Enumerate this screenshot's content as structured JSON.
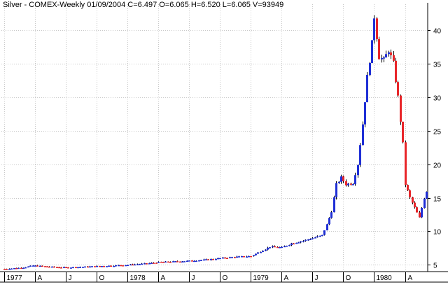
{
  "header": {
    "title": "Silver - COMEX-Weekly   01/09/2004  C=6.497  O=6.065  H=6.520  L=6.065  V=93949"
  },
  "chart_data": {
    "type": "bar",
    "title": "Silver - COMEX-Weekly",
    "grid": true,
    "up_color": "#1f2fd6",
    "down_color": "#e8262a",
    "ylim": [
      4,
      43
    ],
    "y_ticks": [
      5,
      10,
      15,
      20,
      25,
      30,
      35,
      40
    ],
    "y_tick_labels": [
      "5",
      "10",
      "15",
      "20",
      "25",
      "30",
      "35",
      "40"
    ],
    "x_ticks": [
      {
        "label": "1977",
        "index": 0
      },
      {
        "label": "A",
        "index": 13
      },
      {
        "label": "J",
        "index": 26
      },
      {
        "label": "O",
        "index": 39
      },
      {
        "label": "1978",
        "index": 52
      },
      {
        "label": "A",
        "index": 65
      },
      {
        "label": "J",
        "index": 78
      },
      {
        "label": "O",
        "index": 91
      },
      {
        "label": "1979",
        "index": 104
      },
      {
        "label": "A",
        "index": 117
      },
      {
        "label": "J",
        "index": 130
      },
      {
        "label": "O",
        "index": 143
      },
      {
        "label": "1980",
        "index": 156
      },
      {
        "label": "A",
        "index": 169
      }
    ],
    "anchors": [
      [
        0,
        4.4
      ],
      [
        8,
        4.6
      ],
      [
        12,
        4.9
      ],
      [
        20,
        4.7
      ],
      [
        26,
        4.6
      ],
      [
        33,
        4.7
      ],
      [
        39,
        4.8
      ],
      [
        46,
        4.9
      ],
      [
        52,
        5.0
      ],
      [
        60,
        5.2
      ],
      [
        65,
        5.4
      ],
      [
        72,
        5.5
      ],
      [
        78,
        5.6
      ],
      [
        86,
        5.8
      ],
      [
        91,
        6.0
      ],
      [
        98,
        6.2
      ],
      [
        104,
        6.3
      ],
      [
        108,
        7.0
      ],
      [
        112,
        7.7
      ],
      [
        117,
        7.6
      ],
      [
        121,
        8.2
      ],
      [
        126,
        8.6
      ],
      [
        130,
        9.0
      ],
      [
        134,
        9.4
      ],
      [
        136,
        11.0
      ],
      [
        138,
        13.0
      ],
      [
        140,
        17.0
      ],
      [
        142,
        18.0
      ],
      [
        144,
        17.0
      ],
      [
        147,
        17.2
      ],
      [
        149,
        20.0
      ],
      [
        151,
        26.0
      ],
      [
        153,
        33.0
      ],
      [
        155,
        38.0
      ],
      [
        156,
        42.0
      ],
      [
        158,
        36.0
      ],
      [
        160,
        35.5
      ],
      [
        162,
        37.0
      ],
      [
        164,
        35.0
      ],
      [
        166,
        30.0
      ],
      [
        168,
        23.0
      ],
      [
        169,
        17.0
      ],
      [
        171,
        15.0
      ],
      [
        173,
        13.5
      ],
      [
        175,
        12.0
      ],
      [
        177,
        15.0
      ],
      [
        178,
        16.0
      ]
    ],
    "n_bars": 179
  }
}
